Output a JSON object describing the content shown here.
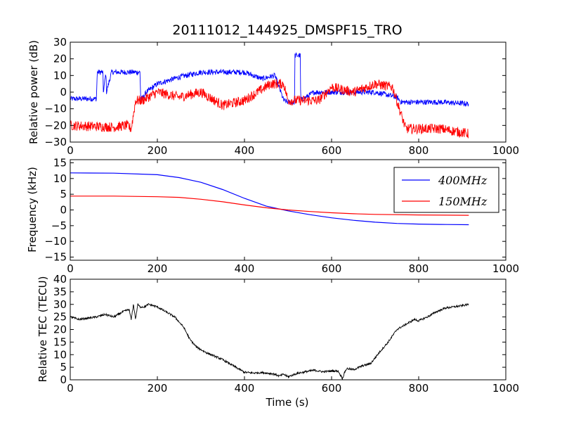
{
  "chart_data": [
    {
      "type": "line",
      "title": "20111012_144925_DMSPF15_TRO",
      "xlabel": "",
      "ylabel": "Relative power (dB)",
      "xlim": [
        0,
        1000
      ],
      "ylim": [
        -30,
        30
      ],
      "xticks": [
        "0",
        "200",
        "400",
        "600",
        "800",
        "1000"
      ],
      "yticks": [
        "30",
        "20",
        "10",
        "0",
        "−10",
        "−20",
        "−30"
      ],
      "series": [
        {
          "color": "#0000ff",
          "x": [
            0,
            60,
            62,
            75,
            76,
            82,
            83,
            95,
            96,
            135,
            160,
            162,
            175,
            200,
            250,
            300,
            350,
            400,
            440,
            470,
            490,
            500,
            515,
            516,
            528,
            529,
            560,
            600,
            650,
            700,
            750,
            760,
            800,
            850,
            915
          ],
          "y": [
            -4,
            -4,
            12,
            12,
            0,
            12,
            0,
            12,
            12,
            12,
            12,
            -5,
            0,
            5,
            9,
            12,
            12,
            12,
            8,
            10,
            -5,
            -6,
            -6,
            22,
            22,
            -5,
            0,
            0,
            0,
            0,
            -3,
            -6,
            -6,
            -6,
            -7
          ],
          "noise": 1.6
        },
        {
          "color": "#ff0000",
          "x": [
            0,
            100,
            130,
            140,
            150,
            165,
            200,
            250,
            300,
            350,
            400,
            430,
            460,
            480,
            490,
            500,
            540,
            570,
            600,
            650,
            700,
            740,
            770,
            800,
            850,
            915
          ],
          "y": [
            -20,
            -21,
            -20,
            -22,
            -5,
            -5,
            0,
            -3,
            0,
            -8,
            -5,
            0,
            5,
            5,
            5,
            -5,
            -5,
            -5,
            3,
            0,
            5,
            3,
            -22,
            -22,
            -22,
            -25
          ],
          "noise": 3
        }
      ]
    },
    {
      "type": "line",
      "title": "",
      "xlabel": "",
      "ylabel": "Frequency (kHz)",
      "xlim": [
        0,
        1000
      ],
      "ylim": [
        -16,
        16
      ],
      "xticks": [
        "0",
        "200",
        "400",
        "600",
        "800",
        "1000"
      ],
      "yticks": [
        "15",
        "10",
        "5",
        "0",
        "−5",
        "−10",
        "−15"
      ],
      "legend": {
        "position": "upper-right",
        "entries": [
          "400MHz",
          "150MHz"
        ]
      },
      "series": [
        {
          "name": "400MHz",
          "color": "#0000ff",
          "x": [
            0,
            100,
            200,
            250,
            300,
            350,
            400,
            450,
            500,
            550,
            600,
            650,
            700,
            750,
            800,
            850,
            915
          ],
          "y": [
            11.8,
            11.7,
            11.2,
            10.3,
            8.8,
            6.5,
            3.7,
            1.2,
            -0.3,
            -1.5,
            -2.5,
            -3.3,
            -3.9,
            -4.3,
            -4.5,
            -4.6,
            -4.7
          ]
        },
        {
          "name": "150MHz",
          "color": "#ff0000",
          "x": [
            0,
            100,
            200,
            250,
            300,
            350,
            400,
            450,
            500,
            550,
            600,
            650,
            700,
            800,
            915
          ],
          "y": [
            4.4,
            4.4,
            4.2,
            4.0,
            3.4,
            2.6,
            1.6,
            0.7,
            0,
            -0.5,
            -0.9,
            -1.2,
            -1.4,
            -1.6,
            -1.7
          ]
        }
      ]
    },
    {
      "type": "line",
      "title": "",
      "xlabel": "Time (s)",
      "ylabel": "Relative TEC (TECU)",
      "xlim": [
        0,
        1000
      ],
      "ylim": [
        0,
        40
      ],
      "xticks": [
        "0",
        "200",
        "400",
        "600",
        "800",
        "1000"
      ],
      "yticks": [
        "40",
        "35",
        "30",
        "25",
        "20",
        "15",
        "10",
        "5",
        "0"
      ],
      "series": [
        {
          "color": "#000000",
          "x": [
            0,
            20,
            40,
            60,
            80,
            100,
            120,
            135,
            140,
            145,
            150,
            155,
            160,
            170,
            180,
            200,
            220,
            240,
            260,
            275,
            290,
            310,
            330,
            350,
            370,
            390,
            400,
            420,
            440,
            460,
            470,
            480,
            490,
            500,
            520,
            540,
            560,
            580,
            600,
            615,
            625,
            630,
            635,
            650,
            670,
            690,
            710,
            720,
            730,
            750,
            770,
            790,
            800,
            820,
            840,
            860,
            880,
            900,
            915
          ],
          "y": [
            25,
            24,
            24.5,
            25,
            26,
            25,
            27,
            28,
            24,
            30,
            24,
            30,
            29,
            29,
            30,
            29,
            27,
            25,
            21,
            16,
            13,
            11,
            9.5,
            8,
            6,
            4,
            3,
            2.7,
            2.9,
            2.5,
            2.2,
            1.5,
            2.2,
            1.2,
            2.5,
            3.2,
            3.8,
            3.2,
            3.5,
            3.5,
            0.5,
            3.0,
            4.5,
            4.0,
            5.5,
            6.5,
            11,
            13,
            15,
            20,
            22,
            24,
            23.5,
            25,
            27,
            28.5,
            29,
            29.5,
            30
          ],
          "noise": 0.4
        }
      ]
    }
  ]
}
